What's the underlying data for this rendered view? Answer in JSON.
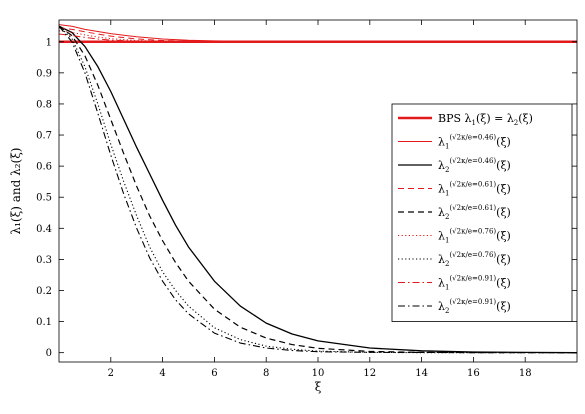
{
  "chart_data": {
    "type": "line",
    "xlabel": "ξ",
    "ylabel": "λ₁(ξ) and λ₂(ξ)",
    "xlim": [
      0,
      20
    ],
    "ylim": [
      -0.03,
      1.07
    ],
    "xticks": [
      2,
      4,
      6,
      8,
      10,
      12,
      14,
      16,
      18
    ],
    "yticks": [
      0,
      0.1,
      0.2,
      0.3,
      0.4,
      0.5,
      0.6,
      0.7,
      0.8,
      0.9,
      1
    ],
    "ytick_labels": [
      "0",
      "0.1",
      "0.2",
      "0.3",
      "0.4",
      "0.5",
      "0.6",
      "0.7",
      "0.8",
      "0.9",
      "1"
    ],
    "grid": false,
    "legend_position": "center-right",
    "series": [
      {
        "name": "BPS λ₁(ξ) = λ₂(ξ)",
        "legend_main": "BPS λ",
        "legend_sub": "1",
        "legend_rest": "(ξ) = λ",
        "legend_sub2": "2",
        "legend_tail": "(ξ)",
        "color": "#e31a1c",
        "style": "solid",
        "width": 2.6,
        "x": [
          0,
          20
        ],
        "y": [
          1.0,
          1.0
        ]
      },
      {
        "name": "λ₁^(√2κ/e=0.46)(ξ)",
        "legend_main": "λ",
        "legend_sub": "1",
        "legend_sup": "(√2κ/e=0.46)",
        "legend_tail": "(ξ)",
        "color": "#e31a1c",
        "style": "solid",
        "width": 1.0,
        "x": [
          0,
          0.5,
          1,
          1.5,
          2,
          3,
          4,
          5,
          6,
          8,
          10,
          14,
          20
        ],
        "y": [
          1.055,
          1.05,
          1.04,
          1.033,
          1.026,
          1.016,
          1.009,
          1.005,
          1.003,
          1.001,
          1.0,
          1.0,
          1.0
        ]
      },
      {
        "name": "λ₂^(√2κ/e=0.46)(ξ)",
        "legend_main": "λ",
        "legend_sub": "2",
        "legend_sup": "(√2κ/e=0.46)",
        "legend_tail": "(ξ)",
        "color": "#000000",
        "style": "solid",
        "width": 1.3,
        "x": [
          0,
          0.5,
          1,
          1.5,
          2,
          2.5,
          3,
          3.5,
          4,
          4.5,
          5,
          6,
          7,
          8,
          9,
          10,
          12,
          14,
          16,
          18,
          20
        ],
        "y": [
          1.05,
          1.03,
          0.985,
          0.92,
          0.84,
          0.75,
          0.66,
          0.575,
          0.49,
          0.41,
          0.34,
          0.23,
          0.15,
          0.095,
          0.06,
          0.038,
          0.015,
          0.006,
          0.002,
          0.001,
          0.0
        ]
      },
      {
        "name": "λ₁^(√2κ/e=0.61)(ξ)",
        "legend_main": "λ",
        "legend_sub": "1",
        "legend_sup": "(√2κ/e=0.61)",
        "legend_tail": "(ξ)",
        "color": "#e31a1c",
        "style": "dashed",
        "width": 1.0,
        "x": [
          0,
          0.5,
          1,
          1.5,
          2,
          3,
          4,
          5,
          6,
          8,
          10,
          20
        ],
        "y": [
          1.045,
          1.04,
          1.032,
          1.025,
          1.018,
          1.009,
          1.004,
          1.002,
          1.001,
          1.0,
          1.0,
          1.0
        ]
      },
      {
        "name": "λ₂^(√2κ/e=0.61)(ξ)",
        "legend_main": "λ",
        "legend_sub": "2",
        "legend_sup": "(√2κ/e=0.61)",
        "legend_tail": "(ξ)",
        "color": "#000000",
        "style": "dashed",
        "width": 1.2,
        "x": [
          0,
          0.5,
          1,
          1.5,
          2,
          2.5,
          3,
          3.5,
          4,
          4.5,
          5,
          6,
          7,
          8,
          9,
          10,
          12,
          14,
          16,
          20
        ],
        "y": [
          1.05,
          1.02,
          0.955,
          0.86,
          0.75,
          0.64,
          0.535,
          0.44,
          0.36,
          0.29,
          0.23,
          0.14,
          0.082,
          0.047,
          0.026,
          0.014,
          0.004,
          0.001,
          0.0,
          0.0
        ]
      },
      {
        "name": "λ₁^(√2κ/e=0.76)(ξ)",
        "legend_main": "λ",
        "legend_sub": "1",
        "legend_sup": "(√2κ/e=0.76)",
        "legend_tail": "(ξ)",
        "color": "#e31a1c",
        "style": "dotted",
        "width": 1.0,
        "x": [
          0,
          0.5,
          1,
          1.5,
          2,
          3,
          4,
          5,
          6,
          8,
          20
        ],
        "y": [
          1.035,
          1.03,
          1.022,
          1.015,
          1.01,
          1.004,
          1.002,
          1.001,
          1.0,
          1.0,
          1.0
        ]
      },
      {
        "name": "λ₂^(√2κ/e=0.76)(ξ)",
        "legend_main": "λ",
        "legend_sub": "2",
        "legend_sup": "(√2κ/e=0.76)",
        "legend_tail": "(ξ)",
        "color": "#000000",
        "style": "dotted",
        "width": 1.1,
        "x": [
          0,
          0.5,
          1,
          1.5,
          2,
          2.5,
          3,
          3.5,
          4,
          4.5,
          5,
          6,
          7,
          8,
          9,
          10,
          12,
          14,
          20
        ],
        "y": [
          1.05,
          1.01,
          0.92,
          0.8,
          0.67,
          0.55,
          0.44,
          0.34,
          0.26,
          0.2,
          0.15,
          0.08,
          0.042,
          0.021,
          0.011,
          0.005,
          0.001,
          0.0,
          0.0
        ]
      },
      {
        "name": "λ₁^(√2κ/e=0.91)(ξ)",
        "legend_main": "λ",
        "legend_sub": "1",
        "legend_sup": "(√2κ/e=0.91)",
        "legend_tail": "(ξ)",
        "color": "#e31a1c",
        "style": "dashdot",
        "width": 1.0,
        "x": [
          0,
          0.5,
          1,
          1.5,
          2,
          3,
          4,
          5,
          20
        ],
        "y": [
          1.025,
          1.02,
          1.014,
          1.009,
          1.005,
          1.002,
          1.001,
          1.0,
          1.0
        ]
      },
      {
        "name": "λ₂^(√2κ/e=0.91)(ξ)",
        "legend_main": "λ",
        "legend_sub": "2",
        "legend_sup": "(√2κ/e=0.91)",
        "legend_tail": "(ξ)",
        "color": "#000000",
        "style": "dashdot",
        "width": 1.1,
        "x": [
          0,
          0.5,
          1,
          1.5,
          2,
          2.5,
          3,
          3.5,
          4,
          4.5,
          5,
          6,
          7,
          8,
          9,
          10,
          12,
          20
        ],
        "y": [
          1.05,
          1.0,
          0.9,
          0.77,
          0.635,
          0.51,
          0.4,
          0.305,
          0.23,
          0.17,
          0.125,
          0.063,
          0.031,
          0.015,
          0.007,
          0.003,
          0.001,
          0.0
        ]
      }
    ]
  }
}
